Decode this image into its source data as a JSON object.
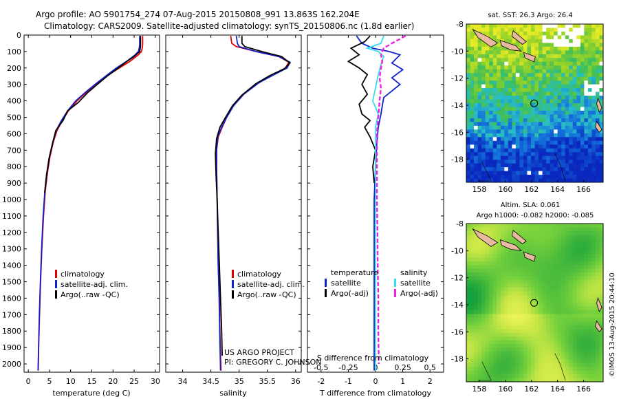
{
  "header": {
    "line1": "Argo profile: AO 5901754_274 07-Aug-2015 20150808_991 13.863S 162.204E",
    "line2": "Climatology: CARS2009. Satellite-adjusted climatology: synTS_20150806.nc (1.8d earlier)"
  },
  "colors": {
    "red": "#e00000",
    "blue": "#1020d0",
    "black": "#000000",
    "cyan": "#30e0f0",
    "magenta": "#f020e0",
    "land": "#e8b8a0"
  },
  "chart_data": [
    {
      "type": "line",
      "id": "temperature",
      "xlabel": "temperature (deg C)",
      "ylabel": "",
      "xlim": [
        -1,
        31
      ],
      "ylim": [
        2050,
        0
      ],
      "xticks": [
        0,
        5,
        10,
        15,
        20,
        25,
        30
      ],
      "yticks": [
        0,
        100,
        200,
        300,
        400,
        500,
        600,
        700,
        800,
        900,
        1000,
        1100,
        1200,
        1300,
        1400,
        1500,
        1600,
        1700,
        1800,
        1900,
        2000
      ],
      "legend": [
        "climatology",
        "satellite-adj. clim.",
        "Argo(..raw -QC)"
      ],
      "series": [
        {
          "name": "climatology",
          "color": "#e00000",
          "points": [
            [
              27.0,
              5
            ],
            [
              27.0,
              60
            ],
            [
              26.9,
              80
            ],
            [
              26.7,
              100
            ],
            [
              26.0,
              120
            ],
            [
              24.0,
              160
            ],
            [
              21.5,
              200
            ],
            [
              19.0,
              240
            ],
            [
              16.5,
              290
            ],
            [
              14.0,
              340
            ],
            [
              11.5,
              400
            ],
            [
              9.5,
              460
            ],
            [
              8.0,
              520
            ],
            [
              6.8,
              580
            ],
            [
              5.9,
              650
            ],
            [
              5.1,
              740
            ],
            [
              4.5,
              840
            ],
            [
              4.0,
              950
            ],
            [
              3.6,
              1100
            ],
            [
              3.2,
              1300
            ],
            [
              2.9,
              1500
            ],
            [
              2.65,
              1700
            ],
            [
              2.45,
              1900
            ],
            [
              2.35,
              2040
            ]
          ]
        },
        {
          "name": "satellite-adj. clim.",
          "color": "#1020d0",
          "points": [
            [
              26.3,
              5
            ],
            [
              26.3,
              60
            ],
            [
              26.2,
              80
            ],
            [
              26.0,
              100
            ],
            [
              25.0,
              125
            ],
            [
              23.2,
              160
            ],
            [
              20.8,
              200
            ],
            [
              18.5,
              245
            ],
            [
              16.0,
              295
            ],
            [
              13.6,
              345
            ],
            [
              11.2,
              400
            ],
            [
              9.3,
              460
            ],
            [
              7.8,
              520
            ],
            [
              6.6,
              580
            ],
            [
              5.8,
              650
            ],
            [
              5.0,
              740
            ],
            [
              4.4,
              840
            ],
            [
              3.9,
              950
            ],
            [
              3.5,
              1100
            ],
            [
              3.15,
              1300
            ],
            [
              2.85,
              1500
            ],
            [
              2.6,
              1700
            ],
            [
              2.42,
              1900
            ],
            [
              2.3,
              2040
            ]
          ]
        },
        {
          "name": "Argo(..raw -QC)",
          "color": "#000000",
          "points": [
            [
              26.5,
              5
            ],
            [
              26.5,
              70
            ],
            [
              26.3,
              100
            ],
            [
              25.0,
              130
            ],
            [
              23.0,
              165
            ],
            [
              21.0,
              205
            ],
            [
              18.6,
              250
            ],
            [
              16.3,
              300
            ],
            [
              14.0,
              350
            ],
            [
              11.8,
              410
            ],
            [
              9.3,
              460
            ],
            [
              8.2,
              520
            ],
            [
              6.5,
              580
            ],
            [
              5.7,
              660
            ],
            [
              4.9,
              750
            ],
            [
              4.3,
              850
            ],
            [
              3.85,
              960
            ]
          ]
        }
      ]
    },
    {
      "type": "line",
      "id": "salinity",
      "xlabel": "salinity",
      "ylabel": "",
      "xlim": [
        33.7,
        36.1
      ],
      "ylim": [
        2050,
        0
      ],
      "xticks": [
        34,
        34.5,
        35,
        35.5,
        36
      ],
      "legend": [
        "climatology",
        "satellite-adj. clim.",
        "Argo(..raw -QC)"
      ],
      "series": [
        {
          "name": "climatology",
          "color": "#e00000",
          "points": [
            [
              34.85,
              5
            ],
            [
              34.87,
              50
            ],
            [
              34.95,
              70
            ],
            [
              35.3,
              100
            ],
            [
              35.7,
              130
            ],
            [
              35.88,
              165
            ],
            [
              35.82,
              200
            ],
            [
              35.6,
              240
            ],
            [
              35.35,
              290
            ],
            [
              35.08,
              360
            ],
            [
              34.9,
              430
            ],
            [
              34.78,
              500
            ],
            [
              34.7,
              560
            ],
            [
              34.63,
              620
            ],
            [
              34.6,
              700
            ],
            [
              34.6,
              800
            ],
            [
              34.61,
              1000
            ],
            [
              34.62,
              1200
            ],
            [
              34.63,
              1400
            ],
            [
              34.65,
              1600
            ],
            [
              34.66,
              1800
            ],
            [
              34.67,
              1950
            ],
            [
              34.68,
              2040
            ]
          ]
        },
        {
          "name": "satellite-adj. clim.",
          "color": "#1020d0",
          "points": [
            [
              34.95,
              5
            ],
            [
              34.97,
              50
            ],
            [
              35.0,
              70
            ],
            [
              35.3,
              100
            ],
            [
              35.7,
              130
            ],
            [
              35.9,
              165
            ],
            [
              35.85,
              200
            ],
            [
              35.62,
              240
            ],
            [
              35.35,
              290
            ],
            [
              35.08,
              360
            ],
            [
              34.9,
              430
            ],
            [
              34.78,
              500
            ],
            [
              34.69,
              560
            ],
            [
              34.62,
              620
            ],
            [
              34.6,
              700
            ],
            [
              34.6,
              800
            ],
            [
              34.61,
              1000
            ],
            [
              34.62,
              1200
            ],
            [
              34.63,
              1400
            ],
            [
              34.645,
              1600
            ],
            [
              34.655,
              1800
            ],
            [
              34.665,
              1950
            ],
            [
              34.67,
              2040
            ]
          ]
        },
        {
          "name": "Argo(..raw -QC)",
          "color": "#000000",
          "points": [
            [
              35.05,
              5
            ],
            [
              35.05,
              50
            ],
            [
              35.1,
              70
            ],
            [
              35.4,
              100
            ],
            [
              35.75,
              130
            ],
            [
              35.9,
              170
            ],
            [
              35.8,
              205
            ],
            [
              35.55,
              245
            ],
            [
              35.3,
              295
            ],
            [
              35.05,
              365
            ],
            [
              34.88,
              430
            ],
            [
              34.76,
              500
            ],
            [
              34.66,
              560
            ],
            [
              34.6,
              630
            ],
            [
              34.58,
              720
            ],
            [
              34.59,
              850
            ],
            [
              34.61,
              1000
            ],
            [
              34.63,
              1200
            ],
            [
              34.65,
              1400
            ],
            [
              34.67,
              1600
            ],
            [
              34.69,
              1800
            ],
            [
              34.7,
              1950
            ]
          ]
        }
      ]
    },
    {
      "type": "line",
      "id": "difference",
      "xlabel": "T difference from climatology",
      "xlabel2": "S difference from climatology",
      "xlim": [
        -2.5,
        2.5
      ],
      "ylim": [
        2050,
        0
      ],
      "xticks": [
        -2,
        -1,
        0,
        1,
        2
      ],
      "xticks2": [
        -0.5,
        -0.25,
        0,
        0.25,
        0.5
      ],
      "legend_titles": [
        "temperature",
        "salinity"
      ],
      "legend": [
        "satellite",
        "Argo(-adj)",
        "satellite",
        "Argo(-adj)"
      ],
      "series": [
        {
          "name": "temperature satellite",
          "color": "#1020d0",
          "points": [
            [
              -0.7,
              5
            ],
            [
              -0.5,
              50
            ],
            [
              -0.1,
              80
            ],
            [
              0.5,
              100
            ],
            [
              0.9,
              120
            ],
            [
              0.6,
              170
            ],
            [
              1.0,
              210
            ],
            [
              0.6,
              260
            ],
            [
              0.9,
              300
            ],
            [
              0.3,
              380
            ],
            [
              0.2,
              480
            ],
            [
              0.1,
              560
            ],
            [
              0.05,
              650
            ],
            [
              0.0,
              800
            ],
            [
              -0.05,
              1000
            ],
            [
              -0.05,
              1200
            ],
            [
              -0.05,
              1500
            ],
            [
              -0.05,
              1800
            ],
            [
              -0.05,
              2040
            ]
          ]
        },
        {
          "name": "temperature Argo(-adj)",
          "color": "#000000",
          "points": [
            [
              -0.2,
              5
            ],
            [
              -0.4,
              40
            ],
            [
              -0.9,
              80
            ],
            [
              -0.6,
              120
            ],
            [
              -1.0,
              160
            ],
            [
              -0.6,
              200
            ],
            [
              -0.3,
              240
            ],
            [
              -0.5,
              300
            ],
            [
              -0.3,
              360
            ],
            [
              -0.6,
              420
            ],
            [
              -0.5,
              480
            ],
            [
              -0.2,
              520
            ],
            [
              -0.4,
              560
            ],
            [
              -0.2,
              620
            ],
            [
              0.0,
              700
            ],
            [
              -0.1,
              800
            ],
            [
              -0.05,
              900
            ]
          ]
        },
        {
          "name": "salinity satellite",
          "color": "#30e0f0",
          "points": [
            [
              0.3,
              5
            ],
            [
              0.2,
              50
            ],
            [
              -0.3,
              80
            ],
            [
              0.1,
              100
            ],
            [
              0.3,
              130
            ],
            [
              0.2,
              180
            ],
            [
              0.1,
              240
            ],
            [
              0.0,
              320
            ],
            [
              -0.1,
              400
            ],
            [
              0.1,
              480
            ],
            [
              0.0,
              560
            ],
            [
              0.0,
              700
            ],
            [
              0.0,
              900
            ],
            [
              0.0,
              1200
            ],
            [
              0.0,
              1500
            ],
            [
              0.0,
              1800
            ],
            [
              0.0,
              2040
            ]
          ]
        },
        {
          "name": "salinity Argo(-adj)",
          "color": "#f020e0",
          "points": [
            [
              1.1,
              5
            ],
            [
              0.6,
              50
            ],
            [
              0.3,
              80
            ],
            [
              0.2,
              120
            ],
            [
              0.25,
              160
            ],
            [
              0.2,
              200
            ],
            [
              0.15,
              260
            ],
            [
              0.2,
              320
            ],
            [
              0.15,
              400
            ],
            [
              0.1,
              500
            ],
            [
              0.05,
              600
            ],
            [
              0.05,
              700
            ],
            [
              0.05,
              800
            ],
            [
              0.05,
              1000
            ],
            [
              0.07,
              1200
            ],
            [
              0.08,
              1400
            ],
            [
              0.1,
              1600
            ],
            [
              0.1,
              1800
            ],
            [
              0.12,
              2000
            ]
          ]
        }
      ]
    },
    {
      "type": "heatmap",
      "id": "sst-map",
      "title": "sat. SST: 26.3 Argo: 26.4",
      "xlim": [
        157,
        167.5
      ],
      "ylim": [
        -19.7,
        -8
      ],
      "xticks": [
        158,
        160,
        162,
        164,
        166
      ],
      "yticks": [
        -8,
        -10,
        -12,
        -14,
        -16,
        -18
      ],
      "marker": [
        162.2,
        -13.86
      ]
    },
    {
      "type": "heatmap",
      "id": "sla-map",
      "title": "Altim. SLA: 0.061",
      "subtitle": "Argo h1000: -0.082 h2000: -0.085",
      "xlim": [
        157,
        167.5
      ],
      "ylim": [
        -19.7,
        -8
      ],
      "xticks": [
        158,
        160,
        162,
        164,
        166
      ],
      "yticks": [
        -8,
        -10,
        -12,
        -14,
        -16,
        -18
      ],
      "marker": [
        162.2,
        -13.86
      ]
    }
  ],
  "credit": {
    "line1": "US ARGO PROJECT",
    "line2": "PI: GREGORY C. JOHNSON"
  },
  "side_label": "©IMOS 13-Aug-2015 20:44:10"
}
